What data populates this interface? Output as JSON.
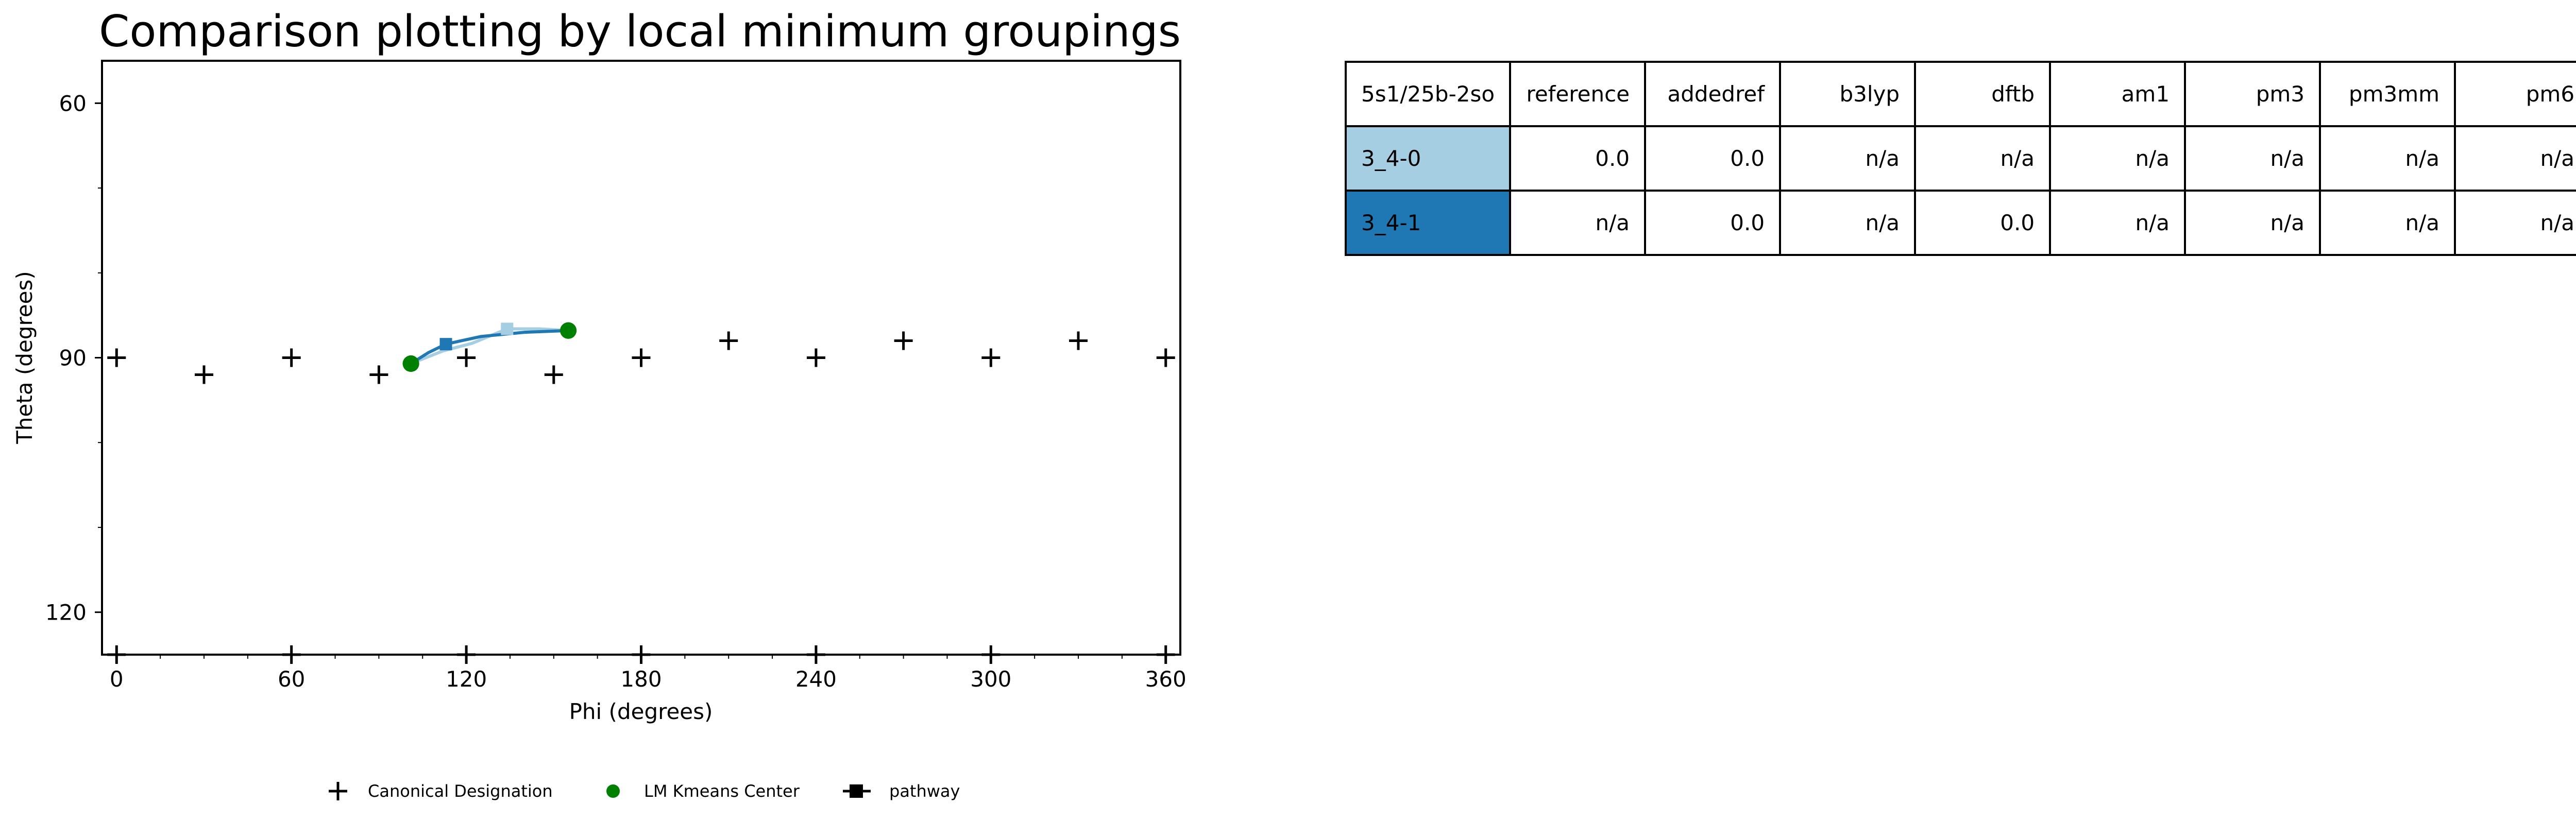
{
  "chart_data": {
    "type": "scatter",
    "title": "Comparison plotting by local minimum groupings",
    "xlabel": "Phi (degrees)",
    "ylabel": "Theta (degrees)",
    "xlim": [
      -5,
      365
    ],
    "ylim": [
      125,
      55
    ],
    "xticks": [
      0,
      60,
      120,
      180,
      240,
      300,
      360
    ],
    "yticks": [
      60,
      90,
      120
    ],
    "grid": false,
    "legend_placement": "bottom-center",
    "legend": [
      "Canonical Designation",
      "LM Kmeans Center",
      "pathway"
    ],
    "series": [
      {
        "name": "Canonical Designation",
        "marker": "plus",
        "color": "#000000",
        "points": [
          [
            0,
            90
          ],
          [
            30,
            92
          ],
          [
            60,
            90
          ],
          [
            90,
            92
          ],
          [
            120,
            90
          ],
          [
            150,
            92
          ],
          [
            180,
            90
          ],
          [
            210,
            88
          ],
          [
            240,
            90
          ],
          [
            270,
            88
          ],
          [
            300,
            90
          ],
          [
            330,
            88
          ],
          [
            360,
            90
          ],
          [
            0,
            125
          ],
          [
            60,
            125
          ],
          [
            120,
            125
          ],
          [
            180,
            125
          ],
          [
            240,
            125
          ],
          [
            300,
            125
          ],
          [
            360,
            125
          ]
        ]
      },
      {
        "name": "LM Kmeans Center",
        "marker": "circle",
        "color": "#008000",
        "points": [
          [
            101,
            90.7
          ],
          [
            155,
            86.8
          ]
        ]
      },
      {
        "name": "pathway",
        "marker": "square",
        "color": "#a6cee3",
        "points": [
          [
            101,
            90.7
          ],
          [
            134,
            86.6
          ],
          [
            155,
            86.8
          ]
        ],
        "curve": [
          [
            101,
            90.7
          ],
          [
            112,
            89.2
          ],
          [
            122,
            88.3
          ],
          [
            134,
            86.6
          ],
          [
            145,
            86.6
          ],
          [
            155,
            86.8
          ]
        ]
      },
      {
        "name": "pathway",
        "marker": "square",
        "color": "#1f78b4",
        "points": [
          [
            101,
            90.7
          ],
          [
            113,
            88.4
          ],
          [
            155,
            86.8
          ]
        ],
        "curve": [
          [
            101,
            90.7
          ],
          [
            107,
            89.4
          ],
          [
            113,
            88.4
          ],
          [
            125,
            87.5
          ],
          [
            140,
            87.0
          ],
          [
            155,
            86.8
          ]
        ]
      }
    ]
  },
  "table": {
    "header": [
      "5s1/25b-2so",
      "reference",
      "addedref",
      "b3lyp",
      "dftb",
      "am1",
      "pm3",
      "pm3mm",
      "pm6"
    ],
    "rows": [
      {
        "label": "3_4-0",
        "color": "#a6cee3",
        "values": [
          "0.0",
          "0.0",
          "n/a",
          "n/a",
          "n/a",
          "n/a",
          "n/a",
          "n/a"
        ]
      },
      {
        "label": "3_4-1",
        "color": "#1f78b4",
        "values": [
          "n/a",
          "0.0",
          "n/a",
          "0.0",
          "n/a",
          "n/a",
          "n/a",
          "n/a"
        ]
      }
    ]
  }
}
